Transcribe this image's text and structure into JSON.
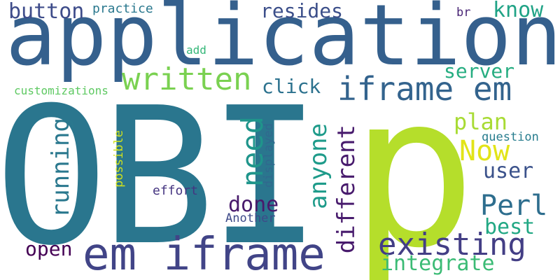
{
  "words": {
    "application": "application",
    "obi": "OBI",
    "p": "p",
    "em_iframe": "em iframe",
    "iframe_em": "iframe em",
    "existing": "existing",
    "written": "written",
    "perl": "Perl",
    "now": "Now",
    "button": "button",
    "resides": "resides",
    "know": "know",
    "server": "server",
    "click": "click",
    "plan": "plan",
    "user": "user",
    "best": "best",
    "integrate": "integrate",
    "done": "done",
    "open": "open",
    "practice": "practice",
    "br": "br",
    "add": "add",
    "customizations": "customizations",
    "question": "question",
    "effort": "effort",
    "another": "Another",
    "running": "running",
    "need": "need",
    "anyone": "anyone",
    "different": "different",
    "displayed": "displayed",
    "possible": "possible"
  },
  "colors": {
    "background": "#ffffff"
  }
}
